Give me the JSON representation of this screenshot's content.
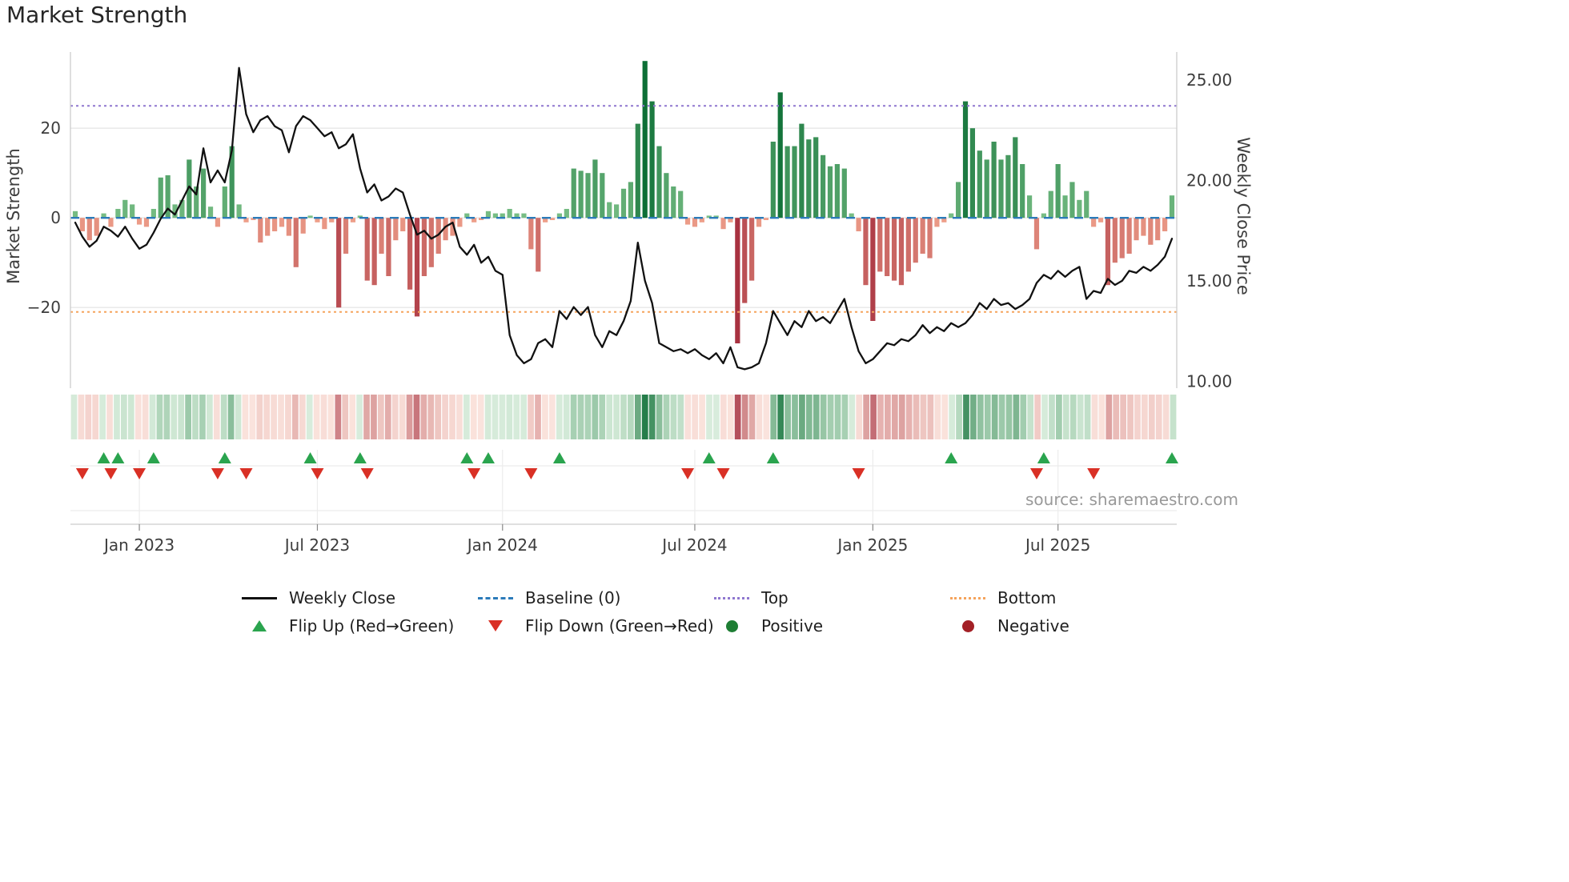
{
  "title": "Market Strength",
  "source": "source: sharemaestro.com",
  "colors": {
    "line": "#111111",
    "baseline": "#2b7bba",
    "top": "#8f77cf",
    "bottom": "#f5a35c",
    "flip_up": "#2aa44e",
    "flip_down": "#d93025",
    "positive": "#1e7e34",
    "negative": "#a32026",
    "green_light": "#7bc087",
    "green_dark": "#0d6f36",
    "red_light": "#f0a28c",
    "red_dark": "#a83240",
    "grid": "#e7e7e7",
    "band_grid": "#ececec",
    "spine": "#cccccc",
    "tick_text": "#3d3d3d",
    "source_text": "#999999"
  },
  "chart_data": {
    "type": "bar+line+heatmap",
    "title": "Market Strength",
    "left_axis": {
      "label": "Market Strength",
      "range": [
        -38,
        37
      ],
      "ticks": [
        {
          "v": 20,
          "label": "20"
        },
        {
          "v": 0,
          "label": "0"
        },
        {
          "v": -20,
          "label": "−20"
        }
      ]
    },
    "right_axis": {
      "label": "Weekly Close Price",
      "range": [
        9.66,
        26.39
      ],
      "ticks": [
        {
          "v": 25,
          "label": "25.00"
        },
        {
          "v": 20,
          "label": "20.00"
        },
        {
          "v": 15,
          "label": "15.00"
        },
        {
          "v": 10,
          "label": "10.00"
        }
      ]
    },
    "x_ticks": [
      {
        "i": 9,
        "label": "Jan 2023"
      },
      {
        "i": 34,
        "label": "Jul 2023"
      },
      {
        "i": 60,
        "label": "Jan 2024"
      },
      {
        "i": 87,
        "label": "Jul 2024"
      },
      {
        "i": 112,
        "label": "Jan 2025"
      },
      {
        "i": 138,
        "label": "Jul 2025"
      }
    ],
    "baseline": 0,
    "top_line": 25,
    "bottom_line": -21,
    "strength": [
      1.5,
      -3,
      -5,
      -4,
      1,
      -2,
      2,
      4,
      3,
      -1.5,
      -2,
      2,
      9,
      9.5,
      3,
      4,
      13,
      7,
      11,
      2.5,
      -2,
      7,
      16,
      3,
      -1,
      -0.5,
      -5.5,
      -4,
      -3,
      -2,
      -4,
      -11,
      -3.5,
      0.5,
      -1,
      -2.5,
      -1,
      -20,
      -8,
      -1,
      0.5,
      -14,
      -15,
      -8,
      -13,
      -5,
      -3,
      -16,
      -22,
      -13,
      -11,
      -8,
      -5,
      -4,
      -2,
      1,
      -1,
      -0.5,
      1.5,
      1,
      1,
      2,
      1,
      1,
      -7,
      -12,
      -1,
      -0.5,
      1,
      2,
      11,
      10.5,
      10,
      13,
      10,
      3.5,
      3,
      6.5,
      8,
      21,
      35,
      26,
      16,
      10,
      7,
      6,
      -1.5,
      -2,
      -1,
      0.5,
      0.5,
      -2.5,
      -1,
      -28,
      -19,
      -14,
      -2,
      -0.5,
      17,
      28,
      16,
      16,
      21,
      17.5,
      18,
      14,
      11.5,
      12,
      11,
      1,
      -3,
      -15,
      -23,
      -12,
      -13,
      -14,
      -15,
      -12,
      -10,
      -8,
      -9,
      -2,
      -1,
      1,
      8,
      26,
      20,
      15,
      13,
      17,
      13,
      14,
      18,
      12,
      5,
      -7,
      1,
      6,
      12,
      5,
      8,
      4,
      6,
      -2,
      -1,
      -15,
      -10,
      -9,
      -8,
      -5,
      -4,
      -6,
      -5,
      -3,
      5
    ],
    "close": [
      17.9,
      17.2,
      16.7,
      17.0,
      17.7,
      17.5,
      17.2,
      17.7,
      17.1,
      16.6,
      16.8,
      17.4,
      18.1,
      18.6,
      18.3,
      19.0,
      19.7,
      19.3,
      21.6,
      19.9,
      20.5,
      19.9,
      21.5,
      25.6,
      23.3,
      22.4,
      23.0,
      23.2,
      22.7,
      22.5,
      21.4,
      22.7,
      23.2,
      23.0,
      22.6,
      22.2,
      22.4,
      21.6,
      21.8,
      22.3,
      20.6,
      19.4,
      19.8,
      19.0,
      19.2,
      19.6,
      19.4,
      18.3,
      17.3,
      17.5,
      17.1,
      17.3,
      17.7,
      17.9,
      16.7,
      16.3,
      16.8,
      15.9,
      16.2,
      15.5,
      15.3,
      12.3,
      11.3,
      10.9,
      11.1,
      11.9,
      12.1,
      11.7,
      13.5,
      13.1,
      13.7,
      13.3,
      13.7,
      12.3,
      11.7,
      12.5,
      12.3,
      13.0,
      14.0,
      16.9,
      15.0,
      13.9,
      11.9,
      11.7,
      11.5,
      11.6,
      11.4,
      11.6,
      11.3,
      11.1,
      11.4,
      10.9,
      11.7,
      10.7,
      10.6,
      10.7,
      10.9,
      11.9,
      13.5,
      12.9,
      12.3,
      13.0,
      12.7,
      13.5,
      13.0,
      13.2,
      12.9,
      13.5,
      14.1,
      12.7,
      11.5,
      10.9,
      11.1,
      11.5,
      11.9,
      11.8,
      12.1,
      12.0,
      12.3,
      12.8,
      12.4,
      12.7,
      12.5,
      12.9,
      12.7,
      12.9,
      13.3,
      13.9,
      13.6,
      14.1,
      13.8,
      13.9,
      13.6,
      13.8,
      14.1,
      14.9,
      15.3,
      15.1,
      15.5,
      15.2,
      15.5,
      15.7,
      14.1,
      14.5,
      14.4,
      15.1,
      14.8,
      15.0,
      15.5,
      15.4,
      15.7,
      15.5,
      15.8,
      16.2,
      17.1
    ],
    "flip_up_indices": [
      4,
      6,
      11,
      21,
      33,
      40,
      55,
      58,
      68,
      89,
      98,
      123,
      136,
      154
    ],
    "flip_down_indices": [
      1,
      5,
      9,
      20,
      24,
      34,
      41,
      56,
      64,
      86,
      91,
      110,
      135,
      143
    ]
  },
  "legend": {
    "rows": [
      [
        {
          "label": "Weekly Close",
          "type": "line"
        },
        {
          "label": "Baseline (0)",
          "type": "dashed"
        },
        {
          "label": "Top",
          "type": "dotted-top"
        },
        {
          "label": "Bottom",
          "type": "dotted-bottom"
        }
      ],
      [
        {
          "label": "Flip Up (Red→Green)",
          "type": "triangle-up"
        },
        {
          "label": "Flip Down (Green→Red)",
          "type": "triangle-down"
        },
        {
          "label": "Positive",
          "type": "circle-positive"
        },
        {
          "label": "Negative",
          "type": "circle-negative"
        }
      ]
    ]
  }
}
